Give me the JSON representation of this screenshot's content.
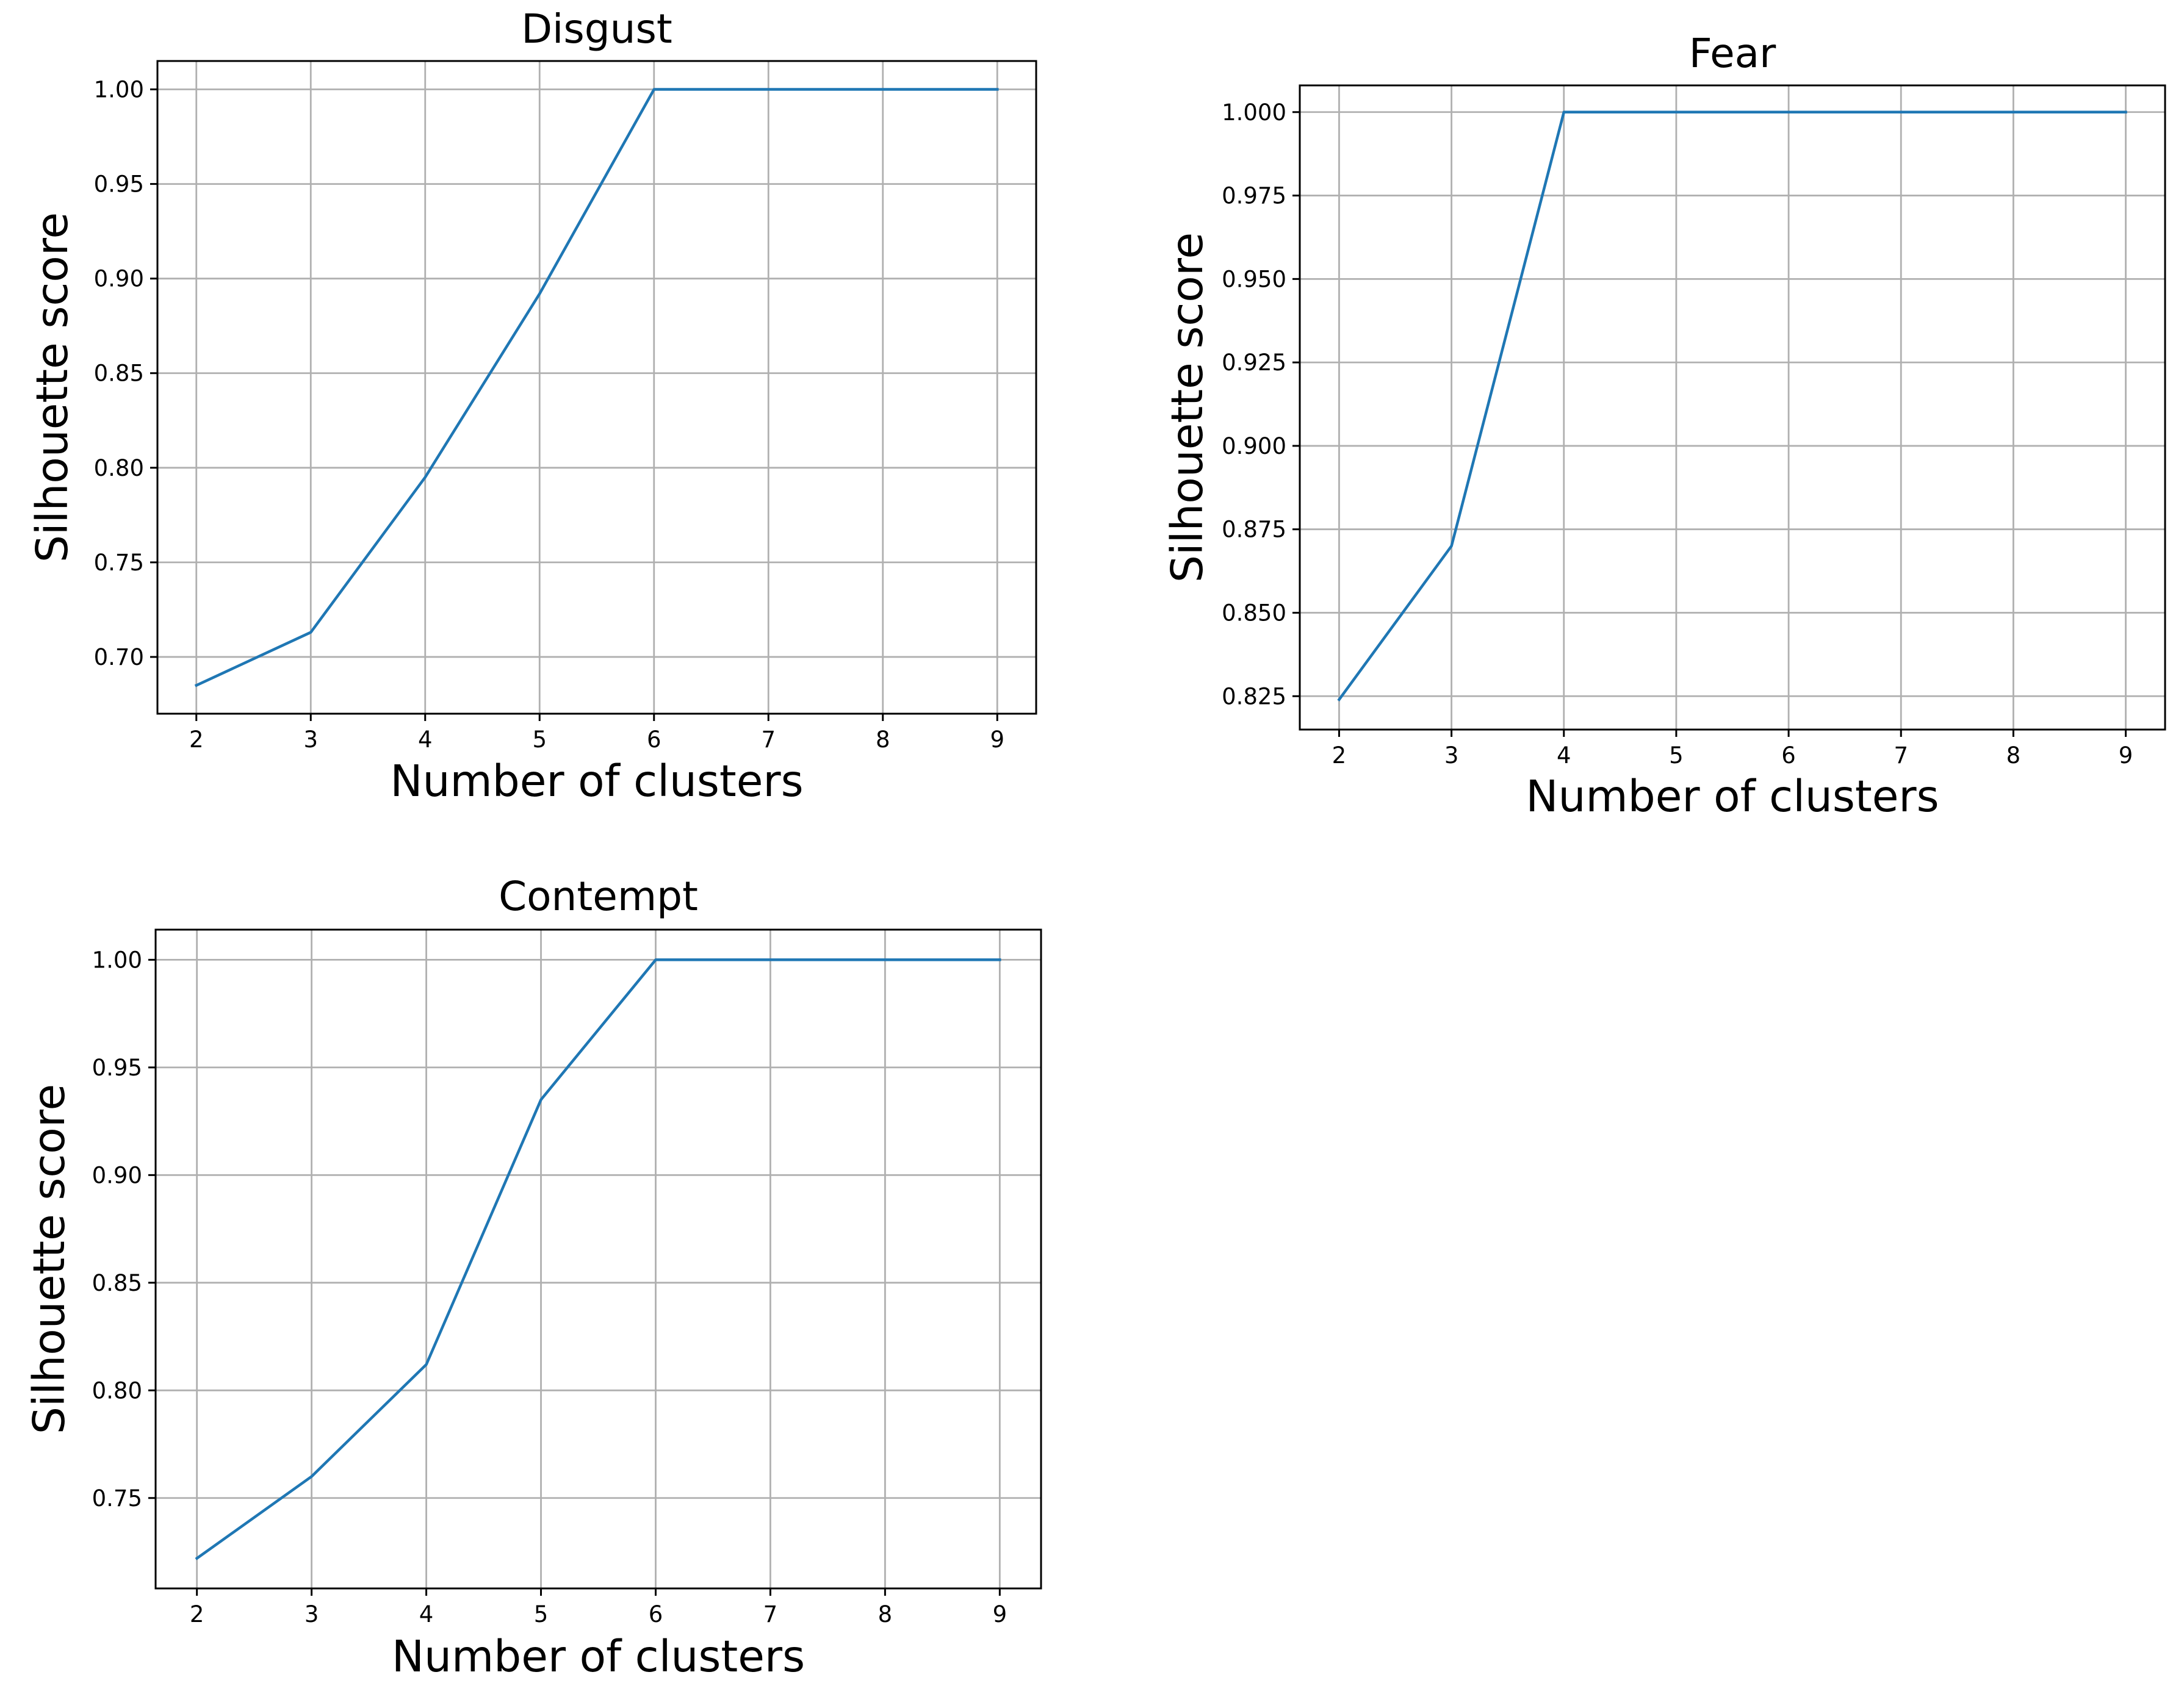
{
  "series_color": "#1f77b4",
  "chart_data": [
    {
      "type": "line",
      "title": "Disgust",
      "xlabel": "Number of clusters",
      "ylabel": "Silhouette score",
      "x": [
        2,
        3,
        4,
        5,
        6,
        7,
        8,
        9
      ],
      "series": [
        {
          "values": [
            0.685,
            0.713,
            0.795,
            0.892,
            1.0,
            1.0,
            1.0,
            1.0
          ]
        }
      ],
      "xticks": [
        2,
        3,
        4,
        5,
        6,
        7,
        8,
        9
      ],
      "yticks": [
        "0.70",
        "0.75",
        "0.80",
        "0.85",
        "0.90",
        "0.95",
        "1.00"
      ],
      "xlim": [
        1.66,
        9.34
      ],
      "ylim": [
        0.67,
        1.015
      ],
      "grid": true
    },
    {
      "type": "line",
      "title": "Fear",
      "xlabel": "Number of clusters",
      "ylabel": "Silhouette score",
      "x": [
        2,
        3,
        4,
        5,
        6,
        7,
        8,
        9
      ],
      "series": [
        {
          "values": [
            0.824,
            0.87,
            1.0,
            1.0,
            1.0,
            1.0,
            1.0,
            1.0
          ]
        }
      ],
      "xticks": [
        2,
        3,
        4,
        5,
        6,
        7,
        8,
        9
      ],
      "yticks": [
        "0.825",
        "0.850",
        "0.875",
        "0.900",
        "0.925",
        "0.950",
        "0.975",
        "1.000"
      ],
      "xlim": [
        1.65,
        9.35
      ],
      "ylim": [
        0.815,
        1.008
      ],
      "grid": true
    },
    {
      "type": "line",
      "title": "Contempt",
      "xlabel": "Number of clusters",
      "ylabel": "Silhouette score",
      "x": [
        2,
        3,
        4,
        5,
        6,
        7,
        8,
        9
      ],
      "series": [
        {
          "values": [
            0.722,
            0.76,
            0.812,
            0.935,
            1.0,
            1.0,
            1.0,
            1.0
          ]
        }
      ],
      "xticks": [
        2,
        3,
        4,
        5,
        6,
        7,
        8,
        9
      ],
      "yticks": [
        "0.75",
        "0.80",
        "0.85",
        "0.90",
        "0.95",
        "1.00"
      ],
      "xlim": [
        1.64,
        9.36
      ],
      "ylim": [
        0.708,
        1.014
      ],
      "grid": true
    }
  ]
}
